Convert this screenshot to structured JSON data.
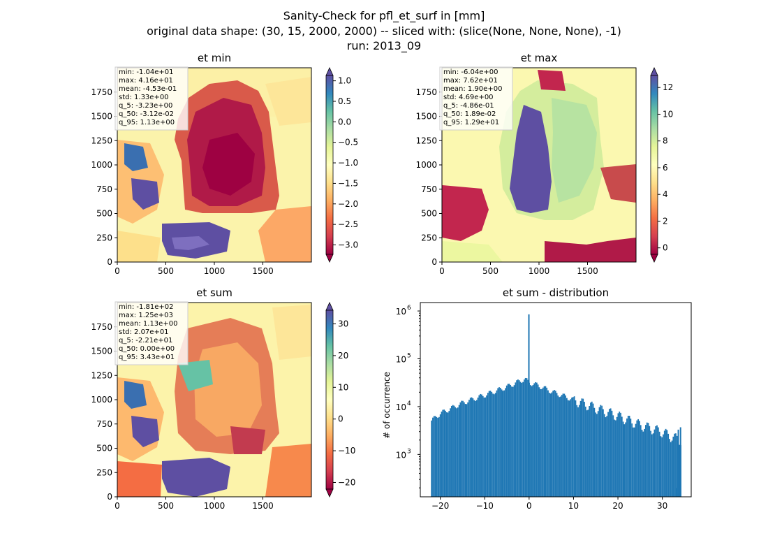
{
  "figure": {
    "title_lines": [
      "Sanity-Check for pfl_et_surf in [mm]",
      "original data shape: (30, 15, 2000, 2000) -- sliced with: (slice(None, None, None), -1)",
      "run: 2013_09"
    ]
  },
  "chart_data": [
    {
      "type": "heatmap",
      "title": "et min",
      "x_ticks": [
        0,
        500,
        1000,
        1500
      ],
      "y_ticks": [
        0,
        250,
        500,
        750,
        1000,
        1250,
        1500,
        1750
      ],
      "xlim": [
        0,
        2000
      ],
      "ylim": [
        0,
        2000
      ],
      "colormap": "Spectral",
      "colorbar": {
        "min": -3.23,
        "max": 1.13,
        "ticks": [
          1.0,
          0.5,
          0.0,
          -0.5,
          -1.0,
          -1.5,
          -2.0,
          -2.5,
          -3.0
        ],
        "tick_labels": [
          "1.0",
          "0.5",
          "0.0",
          "−0.5",
          "−1.0",
          "−1.5",
          "−2.0",
          "−2.5",
          "−3.0"
        ],
        "extend": "both"
      },
      "stats": [
        "min: -1.04e+01",
        "max: 4.16e+01",
        "mean: -4.53e-01",
        "std: 1.33e+00",
        "q_5: -3.23e+00",
        "q_50: -3.12e-02",
        "q_95: 1.13e+00"
      ]
    },
    {
      "type": "heatmap",
      "title": "et max",
      "x_ticks": [
        0,
        500,
        1000,
        1500
      ],
      "y_ticks": [
        0,
        250,
        500,
        750,
        1000,
        1250,
        1500,
        1750
      ],
      "xlim": [
        0,
        2000
      ],
      "ylim": [
        0,
        2000
      ],
      "colormap": "Spectral",
      "colorbar": {
        "min": -0.486,
        "max": 12.9,
        "ticks": [
          12,
          10,
          8,
          6,
          4,
          2,
          0
        ],
        "tick_labels": [
          "12",
          "10",
          "8",
          "6",
          "4",
          "2",
          "0"
        ],
        "extend": "both"
      },
      "stats": [
        "min: -6.04e+00",
        "max: 7.62e+01",
        "mean: 1.90e+00",
        "std: 4.69e+00",
        "q_5: -4.86e-01",
        "q_50: 1.89e-02",
        "q_95: 1.29e+01"
      ]
    },
    {
      "type": "heatmap",
      "title": "et sum",
      "x_ticks": [
        0,
        500,
        1000,
        1500
      ],
      "y_ticks": [
        0,
        250,
        500,
        750,
        1000,
        1250,
        1500,
        1750
      ],
      "xlim": [
        0,
        2000
      ],
      "ylim": [
        0,
        2000
      ],
      "colormap": "Spectral",
      "colorbar": {
        "min": -22.1,
        "max": 34.3,
        "ticks": [
          30,
          20,
          10,
          0,
          -10,
          -20
        ],
        "tick_labels": [
          "30",
          "20",
          "10",
          "0",
          "−10",
          "−20"
        ],
        "extend": "both"
      },
      "stats": [
        "min: -1.81e+02",
        "max: 1.25e+03",
        "mean: 1.13e+00",
        "std: 2.07e+01",
        "q_5: -2.21e+01",
        "q_50: 0.00e+00",
        "q_95: 3.43e+01"
      ]
    },
    {
      "type": "histogram",
      "title": "et sum - distribution",
      "ylabel": "# of occurrence",
      "y_scale": "log",
      "xlim": [
        -24.5,
        36.5
      ],
      "ylim": [
        130,
        1500000
      ],
      "x_ticks": [
        -20,
        -10,
        0,
        10,
        20,
        30
      ],
      "x_tick_labels": [
        "−20",
        "−10",
        "0",
        "10",
        "20",
        "30"
      ],
      "y_ticks": [
        1000,
        10000,
        100000,
        1000000
      ],
      "y_tick_labels": [
        "10",
        "10",
        "10",
        "10"
      ],
      "y_tick_exponents": [
        "3",
        "4",
        "5",
        "6"
      ],
      "bar_color": "#1f77b4",
      "bins": {
        "start": -22.1,
        "end": 34.3,
        "count": 200
      },
      "envelope": [
        [
          -22.1,
          5000
        ],
        [
          -20,
          7200
        ],
        [
          -15,
          12000
        ],
        [
          -10,
          17500
        ],
        [
          -5,
          26000
        ],
        [
          -1,
          38000
        ],
        [
          0,
          32000
        ],
        [
          2,
          28000
        ],
        [
          5,
          21000
        ],
        [
          10,
          14000
        ],
        [
          15,
          9500
        ],
        [
          20,
          6500
        ],
        [
          25,
          4200
        ],
        [
          30,
          3000
        ],
        [
          32,
          2400
        ],
        [
          34.3,
          2000
        ]
      ],
      "spikes": [
        [
          -0.05,
          850000
        ],
        [
          33.2,
          200
        ],
        [
          33.6,
          3300
        ],
        [
          34.1,
          3700
        ]
      ]
    }
  ]
}
